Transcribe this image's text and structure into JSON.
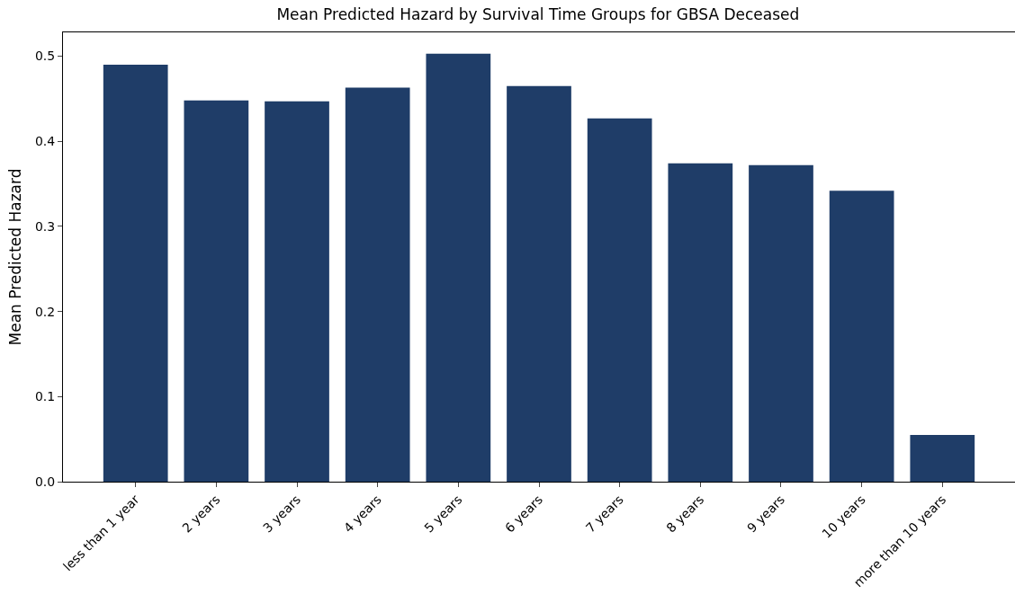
{
  "chart_data": {
    "type": "bar",
    "title": "Mean Predicted Hazard by Survival Time Groups for GBSA Deceased",
    "ylabel": "Mean Predicted Hazard",
    "categories": [
      "less than 1 year",
      "2 years",
      "3 years",
      "4 years",
      "5 years",
      "6 years",
      "7 years",
      "8 years",
      "9 years",
      "10 years",
      "more than 10 years"
    ],
    "values": [
      0.49,
      0.448,
      0.447,
      0.463,
      0.503,
      0.465,
      0.427,
      0.374,
      0.372,
      0.342,
      0.055
    ],
    "color": "#1f3d68",
    "ylim": [
      0,
      0.528
    ],
    "yticks": [
      {
        "value": 0,
        "label": "0.0"
      },
      0.1,
      0.2,
      0.3,
      0.4,
      0.5
    ],
    "grid": false,
    "legend": false
  }
}
